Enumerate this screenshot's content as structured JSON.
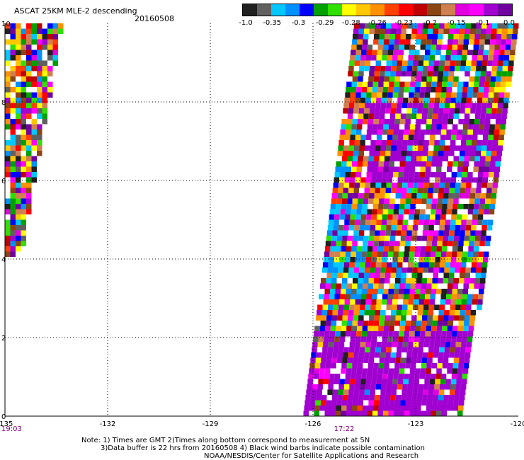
{
  "header": {
    "title": "ASCAT 25KM MLE-2 descending",
    "date": "20160508"
  },
  "colorbar": {
    "colors": [
      "#202020",
      "#606060",
      "#00c8ff",
      "#0090ff",
      "#0000ff",
      "#00a000",
      "#30e000",
      "#ffff00",
      "#ffc800",
      "#ff9000",
      "#ff4000",
      "#ff0000",
      "#c00000",
      "#8b4513",
      "#d08050",
      "#e000e0",
      "#ff00ff",
      "#a000d0",
      "#7000a0"
    ],
    "labels": [
      "-1.0",
      "-0.35",
      "-0.3",
      "-0.29",
      "-0.28",
      "-0.26",
      "-0.23",
      "-0.2",
      "-0.15",
      "-0.1",
      "0.0"
    ]
  },
  "axes": {
    "y_ticks": [
      "10",
      "8",
      "6",
      "4",
      "2",
      "0"
    ],
    "x_ticks": [
      "-135",
      "-132",
      "-129",
      "-126",
      "-123",
      "-120"
    ],
    "time_left": "19:03",
    "time_mid": "17:22"
  },
  "notes": {
    "line1": "Note: 1) Times are GMT 2)Times along bottom correspond to measurement at 5N",
    "line2": "3)Data buffer is 22 hrs from 20160508 4) Black wind barbs indicate possible contamination",
    "line3": "NOAA/NESDIS/Center for Satellite Applications and Research"
  },
  "map_data": {
    "lon_range": [
      -135,
      -120
    ],
    "lat_range": [
      0,
      10
    ],
    "swaths": [
      {
        "name": "west",
        "lat_top": 10,
        "lat_bottom": 4.1,
        "lon_left_top": -135,
        "lon_right_top": -133.4,
        "lon_right_bottom": -134.6
      },
      {
        "name": "east",
        "lat_top": 10,
        "lat_bottom": 0,
        "lon_left_top": -124.8,
        "lon_left_bottom": -126.3,
        "lon_right_top": -120,
        "lon_right_bottom": -121.7
      }
    ]
  }
}
